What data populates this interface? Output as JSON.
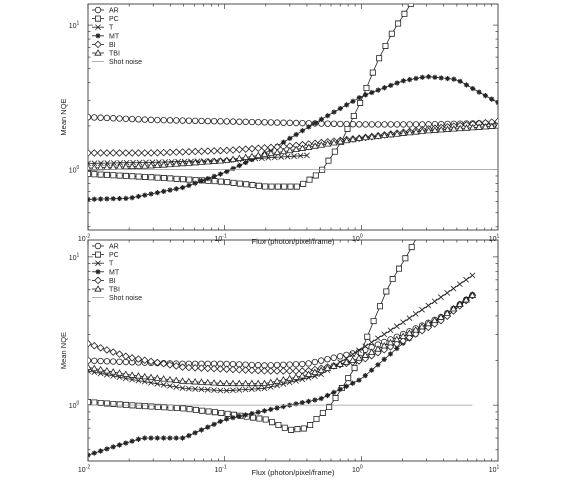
{
  "chart_data": [
    {
      "type": "line",
      "xlabel": "Flux (photon/pixel/frame)",
      "ylabel": "Mean NQE",
      "x_scale": "log",
      "y_scale": "log",
      "xlim": [
        0.01,
        10
      ],
      "ylim": [
        0.38,
        14
      ],
      "legend_position": "top-left",
      "x_ticks": [
        {
          "value": 0.01,
          "base": "10",
          "exp": "-2"
        },
        {
          "value": 0.1,
          "base": "10",
          "exp": "-1"
        },
        {
          "value": 1,
          "base": "10",
          "exp": "0"
        },
        {
          "value": 10,
          "base": "10",
          "exp": "1"
        }
      ],
      "y_ticks": [
        {
          "value": 1,
          "base": "10",
          "exp": "0"
        },
        {
          "value": 10,
          "base": "10",
          "exp": "1"
        }
      ],
      "series": [
        {
          "name": "AR",
          "marker": "circle",
          "x": [
            0.01,
            0.03,
            0.1,
            0.3,
            1,
            3,
            10
          ],
          "y": [
            2.3,
            2.2,
            2.15,
            2.1,
            2.05,
            2.05,
            2.1
          ]
        },
        {
          "name": "PC",
          "marker": "square",
          "x": [
            0.01,
            0.03,
            0.1,
            0.2,
            0.35,
            0.5,
            0.7,
            1,
            1.3,
            1.7,
            2.3
          ],
          "y": [
            0.93,
            0.88,
            0.82,
            0.76,
            0.76,
            0.95,
            1.5,
            3.0,
            5.5,
            9.0,
            14
          ]
        },
        {
          "name": "T",
          "marker": "x",
          "x": [
            0.01,
            0.03,
            0.1,
            0.2,
            0.4
          ],
          "y": [
            1.1,
            1.12,
            1.15,
            1.2,
            1.25
          ]
        },
        {
          "name": "MT",
          "marker": "star",
          "x": [
            0.01,
            0.02,
            0.05,
            0.1,
            0.2,
            0.5,
            1,
            2,
            3,
            5,
            7,
            10
          ],
          "y": [
            0.62,
            0.63,
            0.75,
            0.95,
            1.3,
            2.2,
            3.2,
            4.1,
            4.4,
            4.2,
            3.5,
            2.9
          ]
        },
        {
          "name": "BI",
          "marker": "diamond",
          "x": [
            0.01,
            0.03,
            0.1,
            0.3,
            1,
            3,
            10
          ],
          "y": [
            1.3,
            1.3,
            1.35,
            1.45,
            1.65,
            1.9,
            2.15
          ]
        },
        {
          "name": "TBI",
          "marker": "triangle",
          "x": [
            0.01,
            0.03,
            0.1,
            0.3,
            1,
            3,
            10
          ],
          "y": [
            1.02,
            1.06,
            1.15,
            1.35,
            1.65,
            1.85,
            2.0
          ]
        },
        {
          "name": "Shot noise",
          "marker": "none",
          "x": [
            0.01,
            10
          ],
          "y": [
            1,
            1
          ]
        }
      ]
    },
    {
      "type": "line",
      "xlabel": "Flux (photon/pixel/frame)",
      "ylabel": "Mean NQE",
      "x_scale": "log",
      "y_scale": "log",
      "xlim": [
        0.01,
        10
      ],
      "ylim": [
        0.42,
        13
      ],
      "legend_position": "top-left",
      "x_ticks": [
        {
          "value": 0.01,
          "base": "10",
          "exp": "-2"
        },
        {
          "value": 0.1,
          "base": "10",
          "exp": "-1"
        },
        {
          "value": 1,
          "base": "10",
          "exp": "0"
        },
        {
          "value": 10,
          "base": "10",
          "exp": "1"
        }
      ],
      "y_ticks": [
        {
          "value": 1,
          "base": "10",
          "exp": "0"
        },
        {
          "value": 10,
          "base": "10",
          "exp": "1"
        }
      ],
      "series": [
        {
          "name": "AR",
          "marker": "circle",
          "x": [
            0.01,
            0.02,
            0.05,
            0.1,
            0.2,
            0.4,
            1,
            2,
            4,
            6.5
          ],
          "y": [
            2.0,
            1.95,
            1.9,
            1.9,
            1.85,
            1.9,
            2.3,
            3.0,
            4.0,
            5.5
          ]
        },
        {
          "name": "PC",
          "marker": "square",
          "x": [
            0.01,
            0.02,
            0.05,
            0.1,
            0.2,
            0.3,
            0.4,
            0.6,
            0.9,
            1.2,
            1.6,
            2.2,
            2.6
          ],
          "y": [
            1.05,
            1.0,
            0.95,
            0.88,
            0.8,
            0.68,
            0.7,
            1.0,
            1.8,
            3.5,
            6.5,
            10.5,
            14
          ]
        },
        {
          "name": "T",
          "marker": "x",
          "x": [
            0.01,
            0.02,
            0.05,
            0.1,
            0.2,
            0.5,
            1,
            2,
            4,
            6.5
          ],
          "y": [
            1.7,
            1.5,
            1.3,
            1.25,
            1.3,
            1.6,
            2.4,
            3.6,
            5.5,
            7.5
          ]
        },
        {
          "name": "MT",
          "marker": "star",
          "x": [
            0.01,
            0.015,
            0.025,
            0.05,
            0.1,
            0.2,
            0.3,
            0.5,
            1,
            2,
            4,
            6.5
          ],
          "y": [
            0.46,
            0.52,
            0.6,
            0.6,
            0.8,
            0.92,
            1.0,
            1.1,
            1.5,
            2.6,
            4.0,
            5.6
          ]
        },
        {
          "name": "BI",
          "marker": "diamond",
          "x": [
            0.01,
            0.02,
            0.05,
            0.1,
            0.2,
            0.4,
            1,
            2,
            4,
            6.5
          ],
          "y": [
            2.6,
            2.1,
            1.8,
            1.75,
            1.7,
            1.7,
            2.0,
            2.7,
            3.8,
            5.5
          ]
        },
        {
          "name": "TBI",
          "marker": "triangle",
          "x": [
            0.01,
            0.02,
            0.05,
            0.1,
            0.2,
            0.4,
            1,
            2,
            4,
            6.5
          ],
          "y": [
            1.8,
            1.6,
            1.45,
            1.4,
            1.4,
            1.6,
            2.1,
            2.9,
            4.0,
            5.5
          ]
        },
        {
          "name": "Shot noise",
          "marker": "none",
          "x": [
            0.01,
            6.5
          ],
          "y": [
            1,
            1
          ]
        }
      ]
    }
  ]
}
